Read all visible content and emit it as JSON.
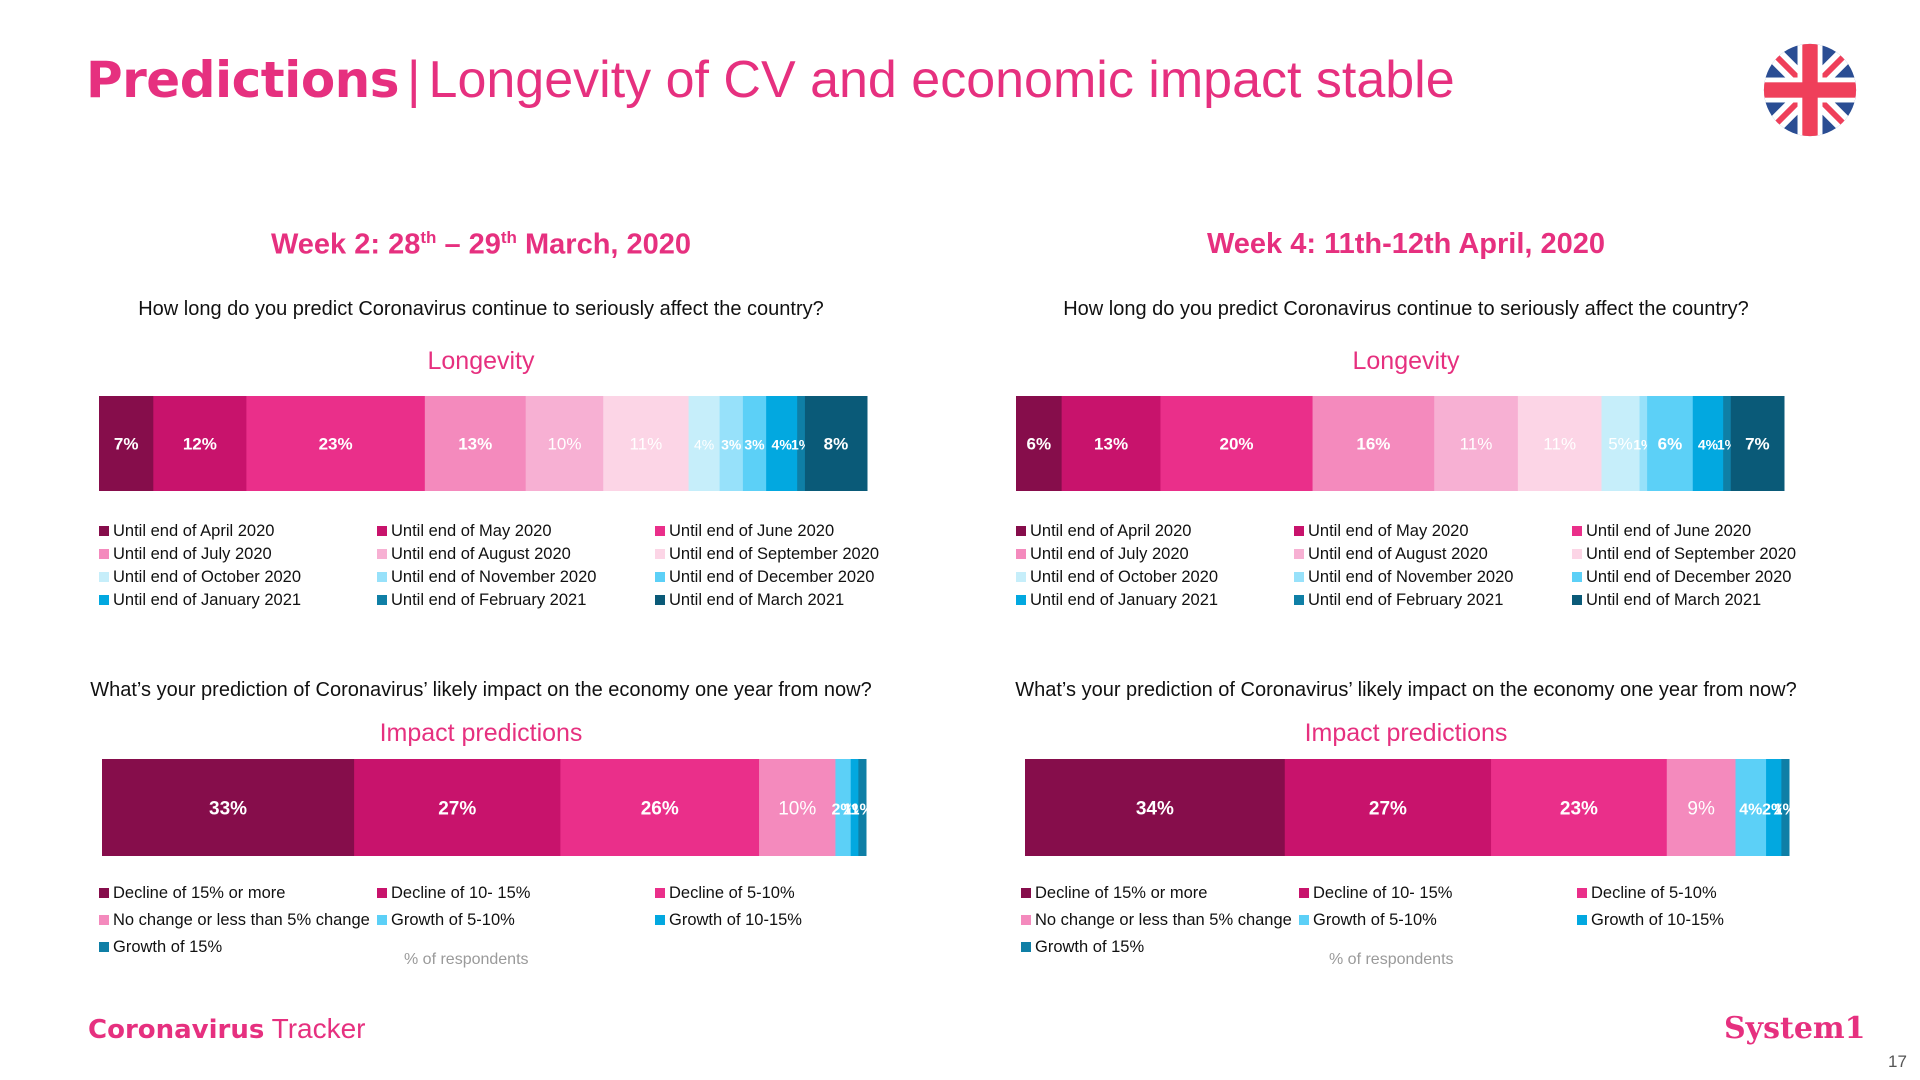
{
  "header": {
    "title_bold": "Predictions",
    "title_sep": "|",
    "title_rest": "Longevity of CV and economic impact stable"
  },
  "footer": {
    "left_bold": "Coronavirus",
    "left_rest": " Tracker",
    "brand": "System1",
    "page_number": "17"
  },
  "colors": {
    "accent": "#e6307f",
    "longevity": [
      "#860d4b",
      "#c8136c",
      "#ea2f8a",
      "#f48abd",
      "#f7b0d3",
      "#fcd5e6",
      "#c6eefa",
      "#97e1fa",
      "#5cd0f7",
      "#02a8e0",
      "#0f7fa6",
      "#0a5a78"
    ],
    "impact": [
      "#860d4b",
      "#c8136c",
      "#ea2f8a",
      "#f48abd",
      "#5cd0f7",
      "#02a8e0",
      "#0f7fa6"
    ]
  },
  "panels": [
    {
      "week_prefix": "Week 2: 28",
      "week_sup1": "th",
      "week_mid": " – 29",
      "week_sup2": "th",
      "week_suffix": " March, 2020",
      "q1": "How long do you predict Coronavirus continue to seriously affect the country?",
      "q2": "What’s your prediction of Coronavirus’ likely impact on the economy one year from now?",
      "respondents": "% of respondents"
    },
    {
      "week_prefix": "Week 4: 11th-12th April, 2020",
      "week_sup1": "",
      "week_mid": "",
      "week_sup2": "",
      "week_suffix": "",
      "q1": "How long do you predict Coronavirus continue to seriously affect the country?",
      "q2": "What’s your prediction of Coronavirus’ likely impact on the economy one year from now?",
      "respondents": "% of respondents"
    }
  ],
  "chart_data": [
    {
      "type": "bar",
      "stacked": true,
      "title": "Longevity",
      "period": "Week 2",
      "categories": [
        "Until end of April 2020",
        "Until end of May 2020",
        "Until end of June 2020",
        "Until end of July 2020",
        "Until end of August 2020",
        "Until end of September 2020",
        "Until end of October 2020",
        "Until end of November 2020",
        "Until end of December 2020",
        "Until end of January 2021",
        "Until end of February 2021",
        "Until end of March 2021"
      ],
      "values": [
        7,
        12,
        23,
        13,
        10,
        11,
        4,
        3,
        3,
        4,
        1,
        8
      ],
      "labels": [
        "7%",
        "12%",
        "23%",
        "13%",
        "10%",
        "11%",
        "4%",
        "3%",
        "3%",
        "4%",
        "1%",
        "8%"
      ]
    },
    {
      "type": "bar",
      "stacked": true,
      "title": "Longevity",
      "period": "Week 4",
      "categories": [
        "Until end of April 2020",
        "Until end of May 2020",
        "Until end of June 2020",
        "Until end of July 2020",
        "Until end of August 2020",
        "Until end of September 2020",
        "Until end of October 2020",
        "Until end of November 2020",
        "Until end of December 2020",
        "Until end of January 2021",
        "Until end of February 2021",
        "Until end of March 2021"
      ],
      "values": [
        6,
        13,
        20,
        16,
        11,
        11,
        5,
        1,
        6,
        4,
        1,
        7
      ],
      "labels": [
        "6%",
        "13%",
        "20%",
        "16%",
        "11%",
        "11%",
        "5%",
        "1%",
        "6%",
        "4%",
        "1%",
        "7%"
      ]
    },
    {
      "type": "bar",
      "stacked": true,
      "title": "Impact predictions",
      "period": "Week 2",
      "categories": [
        "Decline of 15% or more",
        "Decline of 10- 15%",
        "Decline of 5-10%",
        "No change or less than 5% change",
        "Growth of 5-10%",
        "Growth of 10-15%",
        "Growth of 15%"
      ],
      "values": [
        33,
        27,
        26,
        10,
        2,
        1,
        1
      ],
      "labels": [
        "33%",
        "27%",
        "26%",
        "10%",
        "2%",
        "1%",
        "1%"
      ]
    },
    {
      "type": "bar",
      "stacked": true,
      "title": "Impact predictions",
      "period": "Week 4",
      "categories": [
        "Decline of 15% or more",
        "Decline of 10- 15%",
        "Decline of 5-10%",
        "No change or less than 5% change",
        "Growth of 5-10%",
        "Growth of 10-15%",
        "Growth of 15%"
      ],
      "values": [
        34,
        27,
        23,
        9,
        4,
        2,
        1
      ],
      "labels": [
        "34%",
        "27%",
        "23%",
        "9%",
        "4%",
        "2%",
        "1%"
      ]
    }
  ]
}
